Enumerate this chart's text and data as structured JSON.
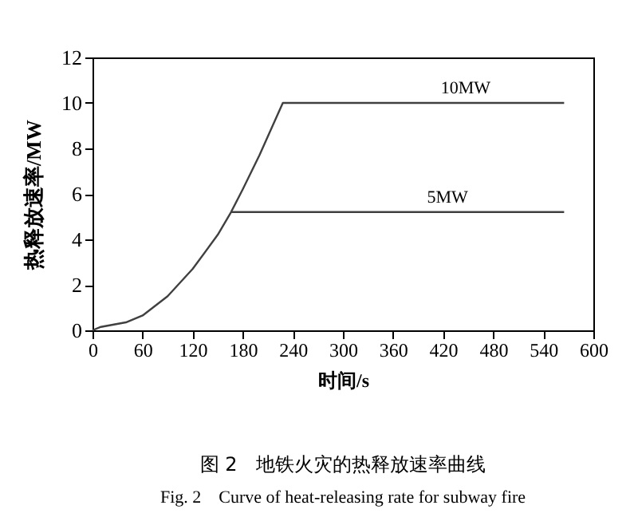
{
  "chart_data": {
    "type": "line",
    "title": "图 2　地铁火灾的热释放速率曲线",
    "subtitle": "Fig. 2　Curve of heat-releasing rate for subway fire",
    "xlabel": "时间/s",
    "ylabel": "热释放速率/MW",
    "xlim": [
      0,
      600
    ],
    "xticks": [
      0,
      60,
      120,
      180,
      240,
      300,
      360,
      420,
      480,
      540,
      600
    ],
    "ylim": [
      0,
      12
    ],
    "yticks": [
      0,
      2,
      4,
      6,
      8,
      10,
      12
    ],
    "grid": false,
    "legend": false,
    "marker": "none",
    "line_style": "solid",
    "series": [
      {
        "name": "10MW",
        "color": "#404040",
        "x": [
          0,
          10,
          40,
          60,
          90,
          120,
          150,
          166,
          180,
          200,
          228,
          565
        ],
        "values": [
          0,
          0.15,
          0.35,
          0.65,
          1.5,
          2.7,
          4.2,
          5.2,
          6.2,
          7.7,
          10,
          10
        ]
      },
      {
        "name": "5MW",
        "color": "#404040",
        "x": [
          166,
          565
        ],
        "values": [
          5.2,
          5.2
        ]
      }
    ]
  }
}
